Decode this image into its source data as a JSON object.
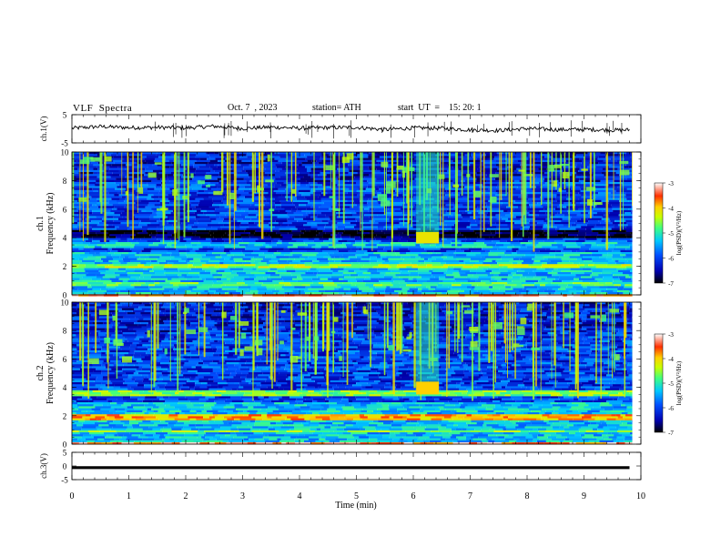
{
  "header": {
    "title": "VLF  Spectra",
    "date": "Oct. 7  , 2023",
    "station": "station= ATH",
    "start": "start  UT  =    15: 20: 1"
  },
  "chart_data": [
    {
      "type": "line",
      "panel": "ch1-waveform",
      "ylabel": "ch.1(V)",
      "ylim": [
        -5,
        5
      ],
      "yticks": [
        5,
        -5
      ],
      "xlim": [
        0,
        10
      ],
      "series": [
        {
          "values_note_free": true,
          "x": [
            0,
            0.5,
            1,
            1.5,
            2,
            2.5,
            3,
            3.5,
            4,
            4.5,
            5,
            5.5,
            6,
            6.5,
            7,
            7.5,
            8,
            8.5,
            9,
            9.5,
            9.8
          ],
          "values": [
            0.2,
            0.8,
            0.4,
            0.5,
            0.3,
            0.9,
            0.1,
            0.6,
            0.2,
            0.4,
            0.5,
            -0.3,
            0.3,
            0.2,
            -0.4,
            -0.6,
            0.1,
            -0.3,
            -0.2,
            -0.5,
            -0.4
          ]
        }
      ]
    },
    {
      "type": "heatmap",
      "panel": "ch1-spectrogram",
      "ylabel": "ch.1\nFrequency  (kHz)",
      "ylim": [
        0,
        10
      ],
      "yticks": [
        0,
        2,
        4,
        6,
        8,
        10
      ],
      "xlim": [
        0,
        10
      ],
      "colorbar": {
        "label": "log(PSD)(V²/Hz)",
        "range": [
          -7,
          -3
        ],
        "ticks": [
          -3,
          -4,
          -5,
          -6,
          -7
        ]
      },
      "bands_khz": [
        {
          "f": [
            4.0,
            4.6
          ],
          "level": -6.9
        },
        {
          "f": [
            3.4,
            3.7
          ],
          "level": -5.5
        },
        {
          "f": [
            1.9,
            2.2
          ],
          "level": -4.6
        },
        {
          "f": [
            0.7,
            0.9
          ],
          "level": -5.0
        },
        {
          "f": [
            0.0,
            0.15
          ],
          "level": -3.5
        }
      ],
      "events": [
        {
          "t": [
            6.05,
            6.45
          ],
          "f": [
            3.6,
            4.4
          ],
          "level": -4.2
        }
      ]
    },
    {
      "type": "heatmap",
      "panel": "ch2-spectrogram",
      "ylabel": "ch.2\nFrequency  (kHz)",
      "ylim": [
        0,
        10
      ],
      "yticks": [
        0,
        2,
        4,
        6,
        8,
        10
      ],
      "xlim": [
        0,
        10
      ],
      "colorbar": {
        "label": "log(PSD)(V²/Hz)",
        "range": [
          -7,
          -3
        ],
        "ticks": [
          -3,
          -4,
          -5,
          -6,
          -7
        ]
      },
      "bands_khz": [
        {
          "f": [
            3.5,
            3.9
          ],
          "level": -4.8
        },
        {
          "f": [
            1.8,
            2.2
          ],
          "level": -3.9
        },
        {
          "f": [
            0.9,
            1.1
          ],
          "level": -4.8
        },
        {
          "f": [
            0.0,
            0.15
          ],
          "level": -3.5
        }
      ],
      "events": [
        {
          "t": [
            6.05,
            6.45
          ],
          "f": [
            3.5,
            4.4
          ],
          "level": -4.0
        }
      ]
    },
    {
      "type": "line",
      "panel": "ch3-waveform",
      "ylabel": "ch.3(V)",
      "ylim": [
        -5,
        5
      ],
      "yticks": [
        5,
        0,
        -5
      ],
      "xlim": [
        0,
        10
      ],
      "series": [
        {
          "x": [
            0,
            9.8
          ],
          "values": [
            -0.6,
            -0.6
          ]
        }
      ]
    }
  ],
  "xaxis": {
    "label": "Time  (min)",
    "ticks": [
      "0",
      "1",
      "2",
      "3",
      "4",
      "5",
      "6",
      "7",
      "8",
      "9",
      "10"
    ]
  },
  "colors": {
    "colormap": [
      "#000000",
      "#0000b0",
      "#0050ff",
      "#00c8ff",
      "#40ff80",
      "#c8ff00",
      "#ffd000",
      "#ff3000",
      "#ffffff"
    ]
  }
}
